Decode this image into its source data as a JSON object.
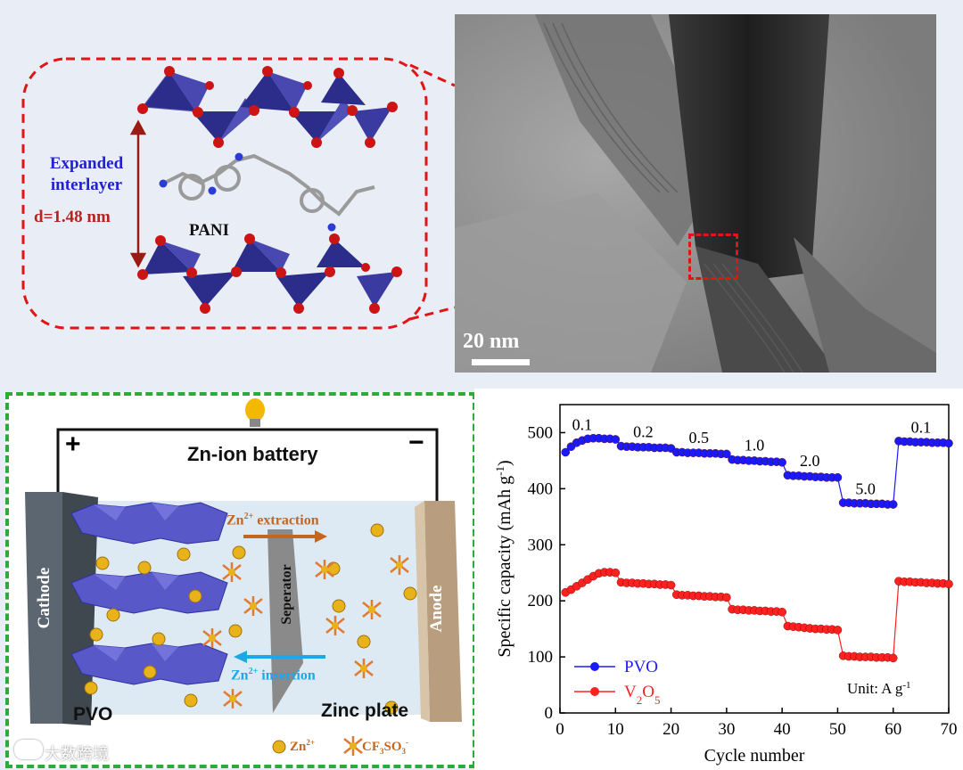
{
  "top_left": {
    "expanded_line1": "Expanded",
    "expanded_line2": "interlayer",
    "d_spacing": "d=1.48 nm",
    "pani_label": "PANI"
  },
  "tem": {
    "scale_bar": "20 nm"
  },
  "battery": {
    "title": "Zn-ion battery",
    "plus": "+",
    "minus": "−",
    "cathode": "Cathode",
    "anode": "Anode",
    "separator": "Seperator",
    "extraction_label": "Zn",
    "extraction_sup": "2+",
    "extraction_text": " extraction",
    "insertion_label": "Zn",
    "insertion_sup": "2+",
    "insertion_text": " insertion",
    "pvo": "PVO",
    "zinc_plate": "Zinc plate",
    "legend_zn": "Zn",
    "legend_zn_sup": "2+",
    "legend_cf3so3": "CF",
    "legend_cf3so3_sub1": "3",
    "legend_cf3so3_mid": "SO",
    "legend_cf3so3_sub2": "3",
    "legend_cf3so3_sup": "-",
    "watermark": "大数跨境"
  },
  "colors": {
    "pvo": "#1a1aff",
    "v2o5": "#ff2020",
    "dash_red": "#e01515",
    "dash_green": "#2eaa3c",
    "extraction_arrow": "#c4661e",
    "insertion_arrow": "#19a9e6",
    "zn_ion": "#e8b21a"
  },
  "chart_data": {
    "type": "scatter",
    "xlabel": "Cycle number",
    "ylabel": "Specific capacity (mAh g",
    "ylabel_sup": "-1",
    "ylabel_end": ")",
    "xlim": [
      0,
      70
    ],
    "ylim": [
      0,
      550
    ],
    "xticks": [
      0,
      10,
      20,
      30,
      40,
      50,
      60,
      70
    ],
    "yticks": [
      0,
      100,
      200,
      300,
      400,
      500
    ],
    "unit_note": "Unit: A g",
    "unit_sup": "-1",
    "rate_labels": [
      {
        "text": "0.1",
        "x": 4,
        "y": 505
      },
      {
        "text": "0.2",
        "x": 15,
        "y": 492
      },
      {
        "text": "0.5",
        "x": 25,
        "y": 482
      },
      {
        "text": "1.0",
        "x": 35,
        "y": 468
      },
      {
        "text": "2.0",
        "x": 45,
        "y": 440
      },
      {
        "text": "5.0",
        "x": 55,
        "y": 390
      },
      {
        "text": "0.1",
        "x": 65,
        "y": 500
      }
    ],
    "legend": [
      {
        "name": "PVO"
      },
      {
        "name": "V",
        "sub1": "2",
        "mid": "O",
        "sub2": "5"
      }
    ],
    "series": [
      {
        "name": "PVO",
        "x": [
          1,
          2,
          3,
          4,
          5,
          6,
          7,
          8,
          9,
          10,
          11,
          12,
          13,
          14,
          15,
          16,
          17,
          18,
          19,
          20,
          21,
          22,
          23,
          24,
          25,
          26,
          27,
          28,
          29,
          30,
          31,
          32,
          33,
          34,
          35,
          36,
          37,
          38,
          39,
          40,
          41,
          42,
          43,
          44,
          45,
          46,
          47,
          48,
          49,
          50,
          51,
          52,
          53,
          54,
          55,
          56,
          57,
          58,
          59,
          60,
          61,
          62,
          63,
          64,
          65,
          66,
          67,
          68,
          69,
          70
        ],
        "values": [
          465,
          475,
          482,
          486,
          489,
          490,
          490,
          489,
          489,
          488,
          476,
          475,
          475,
          474,
          474,
          474,
          473,
          473,
          473,
          472,
          465,
          465,
          464,
          464,
          464,
          463,
          463,
          463,
          462,
          462,
          452,
          451,
          451,
          450,
          450,
          449,
          449,
          448,
          448,
          447,
          424,
          423,
          423,
          422,
          422,
          421,
          421,
          420,
          420,
          420,
          375,
          375,
          374,
          374,
          374,
          373,
          373,
          373,
          372,
          372,
          485,
          484,
          484,
          483,
          483,
          483,
          482,
          482,
          482,
          481
        ]
      },
      {
        "name": "V2O5",
        "x": [
          1,
          2,
          3,
          4,
          5,
          6,
          7,
          8,
          9,
          10,
          11,
          12,
          13,
          14,
          15,
          16,
          17,
          18,
          19,
          20,
          21,
          22,
          23,
          24,
          25,
          26,
          27,
          28,
          29,
          30,
          31,
          32,
          33,
          34,
          35,
          36,
          37,
          38,
          39,
          40,
          41,
          42,
          43,
          44,
          45,
          46,
          47,
          48,
          49,
          50,
          51,
          52,
          53,
          54,
          55,
          56,
          57,
          58,
          59,
          60,
          61,
          62,
          63,
          64,
          65,
          66,
          67,
          68,
          69,
          70
        ],
        "values": [
          215,
          220,
          226,
          232,
          238,
          244,
          249,
          251,
          251,
          250,
          233,
          232,
          232,
          231,
          231,
          230,
          230,
          229,
          229,
          228,
          211,
          210,
          210,
          209,
          209,
          208,
          208,
          207,
          207,
          206,
          185,
          184,
          184,
          183,
          183,
          182,
          182,
          181,
          181,
          180,
          155,
          154,
          153,
          152,
          151,
          150,
          150,
          149,
          149,
          148,
          102,
          101,
          101,
          100,
          100,
          100,
          99,
          99,
          99,
          98,
          235,
          234,
          234,
          233,
          233,
          232,
          232,
          231,
          231,
          230
        ]
      }
    ]
  }
}
